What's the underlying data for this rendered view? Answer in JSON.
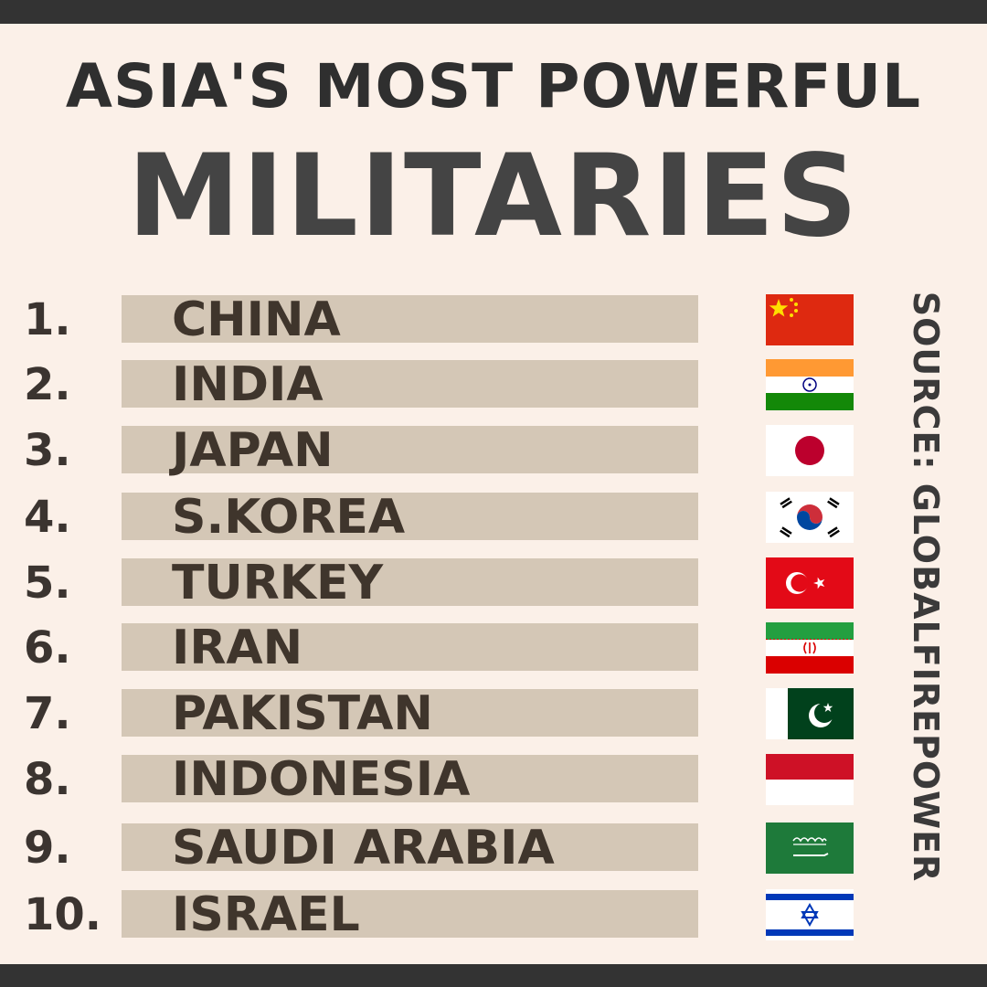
{
  "title": {
    "line1": "ASIA'S MOST POWERFUL",
    "line2": "MILITARIES"
  },
  "source": "SOURCE: GLOBALFIREPOWER",
  "rankings": [
    {
      "rank": "1.",
      "country": "CHINA",
      "flag": "china-flag-icon"
    },
    {
      "rank": "2.",
      "country": "INDIA",
      "flag": "india-flag-icon"
    },
    {
      "rank": "3.",
      "country": "JAPAN",
      "flag": "japan-flag-icon"
    },
    {
      "rank": "4.",
      "country": "S.KOREA",
      "flag": "south-korea-flag-icon"
    },
    {
      "rank": "5.",
      "country": "TURKEY",
      "flag": "turkey-flag-icon"
    },
    {
      "rank": "6.",
      "country": "IRAN",
      "flag": "iran-flag-icon"
    },
    {
      "rank": "7.",
      "country": "PAKISTAN",
      "flag": "pakistan-flag-icon"
    },
    {
      "rank": "8.",
      "country": "INDONESIA",
      "flag": "indonesia-flag-icon"
    },
    {
      "rank": "9.",
      "country": "SAUDI ARABIA",
      "flag": "saudi-arabia-flag-icon"
    },
    {
      "rank": "10.",
      "country": "ISRAEL",
      "flag": "israel-flag-icon"
    }
  ],
  "colors": {
    "background": "#fbf0e8",
    "bar": "#d4c7b6",
    "frame": "#333333",
    "text": "#3f352c"
  }
}
